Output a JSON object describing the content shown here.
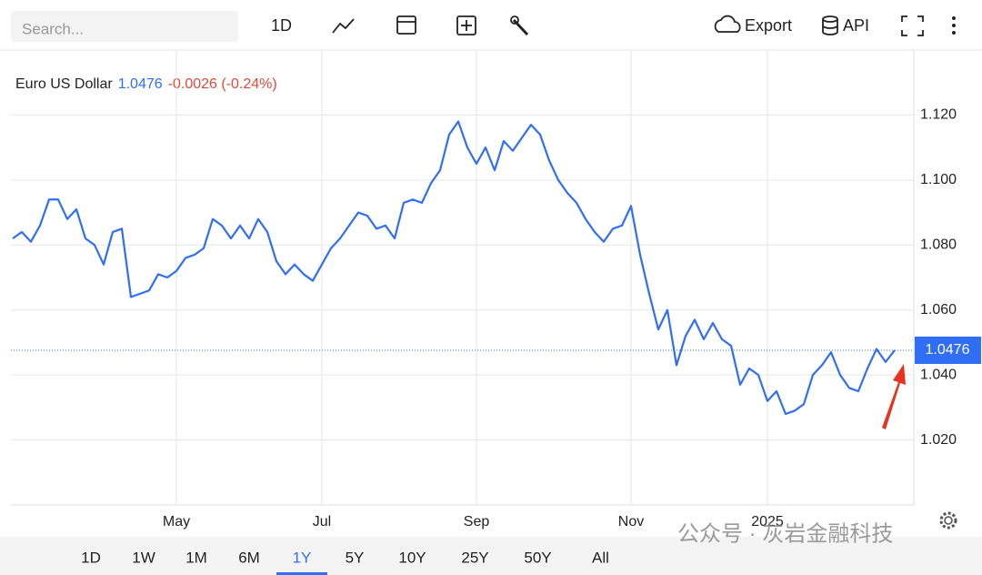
{
  "toolbar": {
    "search_placeholder": "Search...",
    "interval": "1D",
    "export": "Export",
    "api": "API"
  },
  "chart_data": {
    "type": "line",
    "title": "Euro US Dollar",
    "last_value": 1.0476,
    "change": "-0.0026 (-0.24%)",
    "color": "#2f6ef5",
    "values": [
      1.082,
      1.084,
      1.081,
      1.086,
      1.094,
      1.094,
      1.088,
      1.091,
      1.082,
      1.08,
      1.074,
      1.084,
      1.085,
      1.064,
      1.065,
      1.066,
      1.071,
      1.07,
      1.072,
      1.076,
      1.077,
      1.079,
      1.088,
      1.086,
      1.082,
      1.086,
      1.082,
      1.088,
      1.084,
      1.075,
      1.071,
      1.074,
      1.071,
      1.069,
      1.074,
      1.079,
      1.082,
      1.086,
      1.09,
      1.089,
      1.085,
      1.086,
      1.082,
      1.093,
      1.094,
      1.093,
      1.099,
      1.103,
      1.114,
      1.118,
      1.11,
      1.105,
      1.11,
      1.103,
      1.112,
      1.109,
      1.113,
      1.117,
      1.114,
      1.106,
      1.1,
      1.096,
      1.093,
      1.088,
      1.084,
      1.081,
      1.085,
      1.086,
      1.092,
      1.077,
      1.065,
      1.054,
      1.06,
      1.043,
      1.052,
      1.057,
      1.051,
      1.056,
      1.051,
      1.049,
      1.037,
      1.042,
      1.04,
      1.032,
      1.035,
      1.028,
      1.029,
      1.031,
      1.04,
      1.043,
      1.047,
      1.04,
      1.036,
      1.035,
      1.042,
      1.048,
      1.044,
      1.0476
    ],
    "xlim": [
      0,
      97
    ],
    "xticks": [
      {
        "value": 18,
        "label": "May"
      },
      {
        "value": 34,
        "label": "Jul"
      },
      {
        "value": 51,
        "label": "Sep"
      },
      {
        "value": 68,
        "label": "Nov"
      },
      {
        "value": 83,
        "label": "2025"
      }
    ],
    "ylim": [
      1.0,
      1.14
    ],
    "yticks": [
      {
        "value": 1.02,
        "label": "1.020"
      },
      {
        "value": 1.04,
        "label": "1.040"
      },
      {
        "value": 1.06,
        "label": "1.060"
      },
      {
        "value": 1.08,
        "label": "1.080"
      },
      {
        "value": 1.1,
        "label": "1.100"
      },
      {
        "value": 1.12,
        "label": "1.120"
      }
    ],
    "grid": true
  },
  "range_buttons": {
    "options": [
      "1D",
      "1W",
      "1M",
      "6M",
      "1Y",
      "5Y",
      "10Y",
      "25Y",
      "50Y",
      "All"
    ],
    "selected": "1Y"
  },
  "watermark": "公众号 · 灰岩金融科技"
}
